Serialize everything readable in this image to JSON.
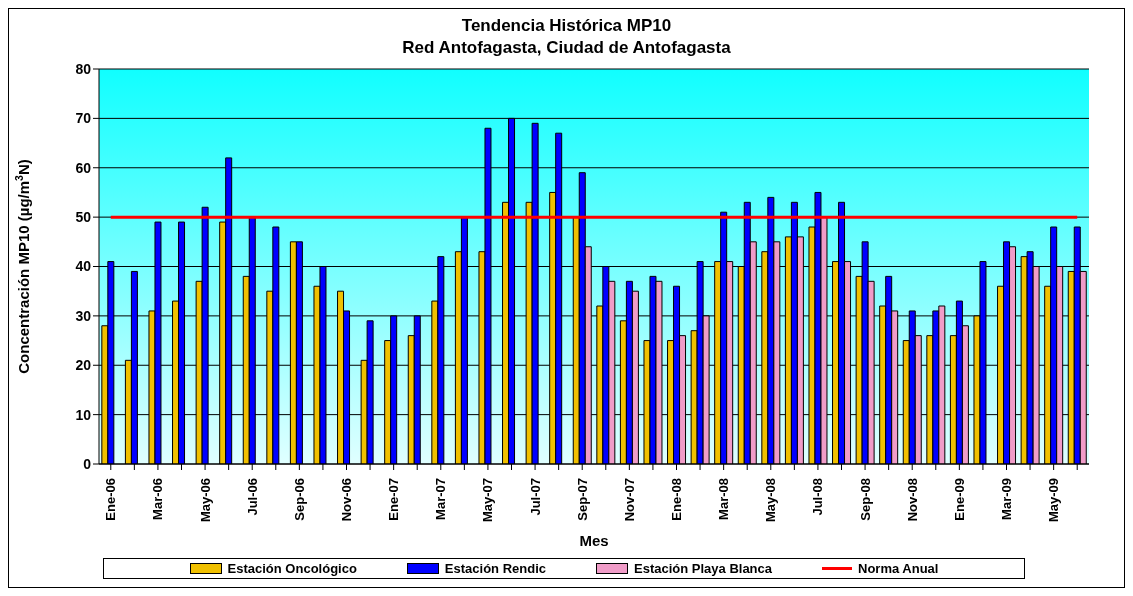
{
  "chart_data": {
    "type": "bar",
    "title": "Tendencia Histórica MP10",
    "subtitle": "Red Antofagasta, Ciudad de Antofagasta",
    "xlabel": "Mes",
    "ylabel": "Concentración MP10 (µg/m$^{3}$N)",
    "categories": [
      "Ene-06",
      null,
      "Mar-06",
      null,
      "May-06",
      null,
      "Jul-06",
      null,
      "Sep-06",
      null,
      "Nov-06",
      null,
      "Ene-07",
      null,
      "Mar-07",
      null,
      "May-07",
      null,
      "Jul-07",
      null,
      "Sep-07",
      null,
      "Nov-07",
      null,
      "Ene-08",
      null,
      "Mar-08",
      null,
      "May-08",
      null,
      "Jul-08",
      null,
      "Sep-08",
      null,
      "Nov-08",
      null,
      "Ene-09",
      null,
      "Mar-09",
      null,
      "May-09",
      null
    ],
    "series": [
      {
        "name": "Estación Oncológico",
        "color": "#f0c000",
        "values": [
          28,
          21,
          31,
          33,
          37,
          49,
          38,
          35,
          45,
          36,
          35,
          21,
          25,
          26,
          33,
          43,
          43,
          53,
          53,
          55,
          50,
          32,
          29,
          25,
          25,
          27,
          41,
          40,
          43,
          46,
          48,
          41,
          38,
          32,
          25,
          26,
          26,
          30,
          36,
          42,
          36,
          39
        ]
      },
      {
        "name": "Estación Rendic",
        "color": "#0000ff",
        "values": [
          41,
          39,
          49,
          49,
          52,
          62,
          50,
          48,
          45,
          40,
          31,
          29,
          30,
          30,
          42,
          50,
          68,
          70,
          69,
          67,
          59,
          40,
          37,
          38,
          36,
          41,
          51,
          53,
          54,
          53,
          55,
          53,
          45,
          38,
          31,
          31,
          33,
          41,
          45,
          43,
          48,
          48
        ]
      },
      {
        "name": "Estación Playa Blanca",
        "color": "#f09cc8",
        "values": [
          null,
          null,
          null,
          null,
          null,
          null,
          null,
          null,
          null,
          null,
          null,
          null,
          null,
          null,
          null,
          null,
          null,
          null,
          null,
          null,
          44,
          37,
          35,
          37,
          26,
          30,
          41,
          45,
          45,
          46,
          50,
          41,
          37,
          31,
          26,
          32,
          28,
          null,
          44,
          40,
          40,
          39
        ]
      },
      {
        "name": "Norma Anual",
        "type": "line",
        "color": "#ff0000",
        "values": [
          50,
          50,
          50,
          50,
          50,
          50,
          50,
          50,
          50,
          50,
          50,
          50,
          50,
          50,
          50,
          50,
          50,
          50,
          50,
          50,
          50,
          50,
          50,
          50,
          50,
          50,
          50,
          50,
          50,
          50,
          50,
          50,
          50,
          50,
          50,
          50,
          50,
          50,
          50,
          50,
          50,
          50
        ]
      }
    ],
    "ylim": [
      0,
      80
    ],
    "yticks": [
      0,
      10,
      20,
      30,
      40,
      50,
      60,
      70,
      80
    ],
    "grid": "y",
    "legend": "bottom",
    "marker": "none"
  }
}
